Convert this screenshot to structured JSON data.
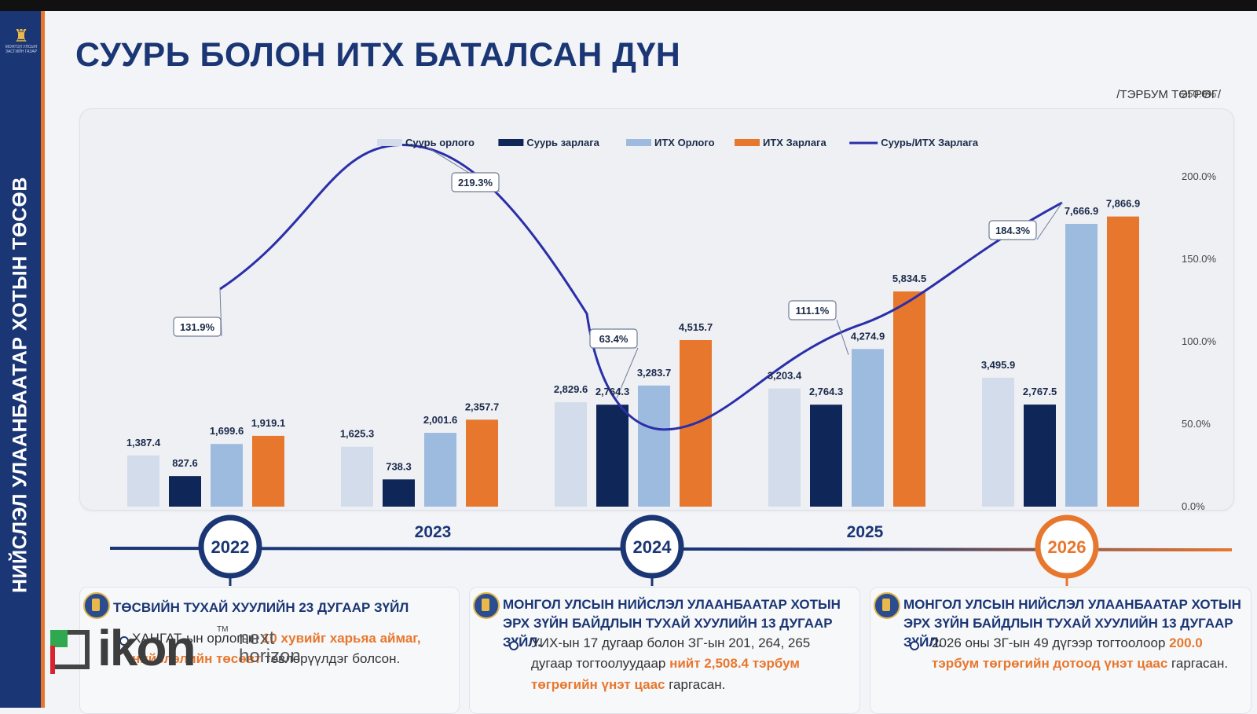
{
  "page": {
    "title": "СУУРЬ БОЛОН ИТХ БАТАЛСАН ДҮН",
    "unit": "/ТЭРБУМ ТӨГРӨГ/",
    "sidebar_title": "НИЙСЛЭЛ УЛААНБААТАР ХОТЫН ТӨСӨВ",
    "emblem_text": "МОНГОЛ УЛСЫН ЗАСГИЙН ГАЗАР"
  },
  "colors": {
    "navy": "#1b3675",
    "orange": "#e8772e",
    "light_blue": "#d2dcea",
    "dark_navy": "#0f2658",
    "mid_blue": "#9dbbdf",
    "line": "#2b2fa8"
  },
  "chart_data": {
    "type": "bar",
    "categories": [
      "2022",
      "2023",
      "2024",
      "2025",
      "2026"
    ],
    "series": [
      {
        "name": "Суурь орлого",
        "values": [
          1387.4,
          1625.3,
          2829.6,
          3203.4,
          3495.9
        ],
        "labels": [
          "1,387.4",
          "1,625.3",
          "2,829.6",
          "3,203.4",
          "3,495.9"
        ],
        "color": "#d2dcea"
      },
      {
        "name": "Суурь зарлага",
        "values": [
          827.6,
          738.3,
          2764.3,
          2764.3,
          2767.5
        ],
        "labels": [
          "827.6",
          "738.3",
          "2,764.3",
          "2,764.3",
          "2,767.5"
        ],
        "color": "#0f2658"
      },
      {
        "name": "ИТХ Орлого",
        "values": [
          1699.6,
          2001.6,
          3283.7,
          4274.9,
          7666.9
        ],
        "labels": [
          "1,699.6",
          "2,001.6",
          "3,283.7",
          "4,274.9",
          "7,666.9"
        ],
        "color": "#9dbbdf"
      },
      {
        "name": "ИТХ Зарлага",
        "values": [
          1919.1,
          2357.7,
          4515.7,
          5834.5,
          7866.9
        ],
        "labels": [
          "1,919.1",
          "2,357.7",
          "4,515.7",
          "5,834.5",
          "7,866.9"
        ],
        "color": "#e8772e"
      }
    ],
    "line_series": {
      "name": "Суурь/ИТХ Зарлага",
      "values": [
        131.9,
        219.3,
        63.4,
        111.1,
        184.3
      ],
      "labels": [
        "131.9%",
        "219.3%",
        "63.4%",
        "111.1%",
        "184.3%"
      ],
      "color": "#2b2fa8"
    },
    "y2_ticks": [
      "0.0%",
      "50.0%",
      "100.0%",
      "150.0%",
      "200.0%",
      "250.0%"
    ],
    "y2lim": [
      0,
      250
    ],
    "legend_position": "top",
    "grid": false
  },
  "timeline": {
    "years": [
      "2022",
      "2023",
      "2024",
      "2025",
      "2026"
    ],
    "circled": [
      "2022",
      "2024",
      "2026"
    ]
  },
  "cards": [
    {
      "title": "ТӨСВИЙН ТУХАЙ ХУУЛИЙН 23 ДУГААР ЗҮЙЛ",
      "pre": "ХАНГАТ-ын орлогын ",
      "highlight": "10 хувийг харьяа аймаг, нийслэлийн төсөвт",
      "post": " төвлөрүүлдэг болсон."
    },
    {
      "title": "МОНГОЛ УЛСЫН НИЙСЛЭЛ УЛААНБААТАР ХОТЫН ЭРХ ЗҮЙН БАЙДЛЫН ТУХАЙ ХУУЛИЙН 13 ДУГААР ЗҮЙЛ.",
      "pre": "УИХ-ын 17 дугаар болон ЗГ-ын 201, 264, 265 дугаар тогтоолуудаар ",
      "highlight": "нийт 2,508.4 тэрбум төгрөгийн үнэт цаас",
      "post": " гаргасан."
    },
    {
      "title": "МОНГОЛ УЛСЫН НИЙСЛЭЛ УЛААНБААТАР ХОТЫН ЭРХ ЗҮЙН БАЙДЛЫН ТУХАЙ ХУУЛИЙН 13 ДУГААР ЗҮЙЛ.",
      "pre": "2026 оны ЗГ-ын 49 дүгээр тогтоолоор ",
      "highlight": "200.0 тэрбум төгрөгийн дотоод үнэт цаас",
      "post": " гаргасан."
    }
  ],
  "logo": {
    "word": "ikon",
    "tm": "TM",
    "sub1": "next",
    "sub2": "horizon"
  }
}
